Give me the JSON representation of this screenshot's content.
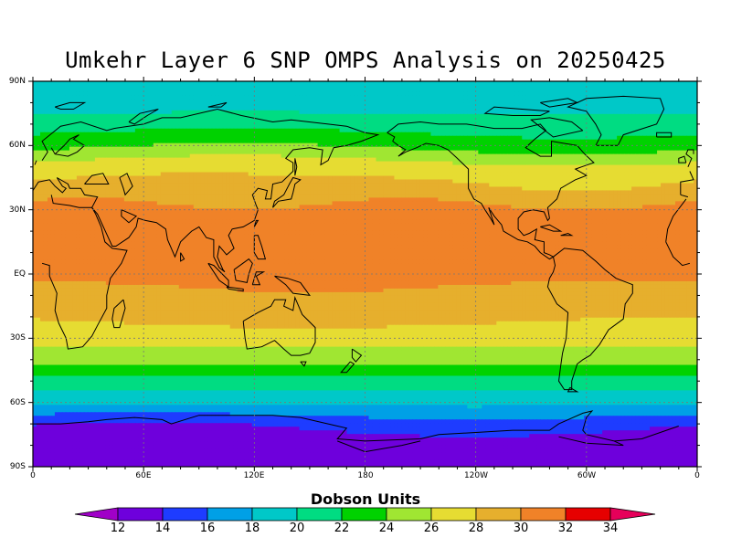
{
  "title": "Umkehr Layer 6 SNP OMPS Analysis on 20250425",
  "y_ticks": [
    "90N",
    "60N",
    "30N",
    "EQ",
    "30S",
    "60S",
    "90S"
  ],
  "x_ticks": [
    "0",
    "60E",
    "120E",
    "180",
    "120W",
    "60W",
    "0"
  ],
  "colorbar": {
    "title": "Dobson Units",
    "levels": [
      12,
      14,
      16,
      18,
      20,
      22,
      24,
      26,
      28,
      30,
      32,
      34
    ],
    "colors": [
      "#a000c8",
      "#6e00dc",
      "#1e3cff",
      "#00a0e6",
      "#00c8c8",
      "#00dc82",
      "#00d200",
      "#a0e632",
      "#e6dc32",
      "#e6af2d",
      "#f08228",
      "#e60000",
      "#e6005a"
    ]
  },
  "field": {
    "lat_bands": [
      {
        "lat": 90,
        "du": 18.5
      },
      {
        "lat": 80,
        "du": 19.0
      },
      {
        "lat": 70,
        "du": 21.0
      },
      {
        "lat": 60,
        "du": 23.5
      },
      {
        "lat": 50,
        "du": 27.0
      },
      {
        "lat": 40,
        "du": 28.5
      },
      {
        "lat": 30,
        "du": 30.5
      },
      {
        "lat": 20,
        "du": 31.0
      },
      {
        "lat": 10,
        "du": 31.0
      },
      {
        "lat": 0,
        "du": 30.5
      },
      {
        "lat": -10,
        "du": 29.5
      },
      {
        "lat": -20,
        "du": 28.5
      },
      {
        "lat": -30,
        "du": 27.0
      },
      {
        "lat": -40,
        "du": 24.5
      },
      {
        "lat": -50,
        "du": 21.5
      },
      {
        "lat": -60,
        "du": 18.5
      },
      {
        "lat": -70,
        "du": 14.5
      },
      {
        "lat": -80,
        "du": 12.5
      },
      {
        "lat": -90,
        "du": 13.0
      }
    ]
  }
}
